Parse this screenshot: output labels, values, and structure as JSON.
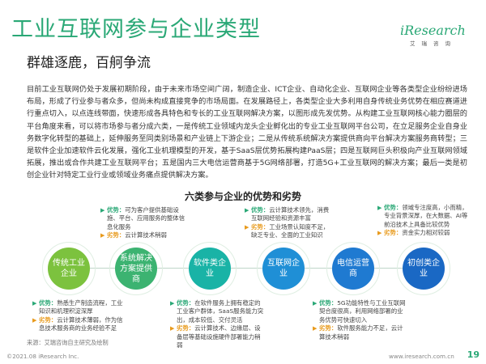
{
  "header": {
    "title": "工业互联网参与企业类型",
    "subtitle": "群雄逐鹿，百舸争流",
    "logo_main": "iResearch",
    "logo_sub": "艾瑞咨询"
  },
  "intro": "目前工业互联网仍处于发展初期阶段，由于未来市场空间广阔，制造企业、ICT企业、自动化企业、互联网企业等各类型企业纷纷进场布局，形成了行业参与者众多，但尚未构成直接竞争的市场局面。在发展路径上，各类型企业大多利用自身传统业务优势在相应赛道进行重点切入，以点连线带面，快速形成各具特色和专长的工业互联网解决方案，以图形成先发优势。从构建工业互联网核心能力圈层的平台角度来看，可以将市场参与者分成六类，一是传统工业领域内龙头企业孵化出的专业工业互联网平台公司，在立足服务企业自身业务数字化转型的基础上，延伸服务至同类别场景和产业链上下游企业；二是从传统系统解决方案提供商向平台解决方案服务商转型；三是软件企业加速软件云化发展，强化工业机理模型的开发，基于SaaS层优势拓展构建PaaS层；四是互联网巨头积极向产业互联网领域拓展，推出或合作共建工业互联网平台；五是国内三大电信运营商基于5G网络部署，打造5G+工业互联网的解决方案；最后一类是初创企业针对特定工业行业或领域业务痛点提供解决方案。",
  "section_title": "六类参与企业的优势和劣势",
  "labels": {
    "pro": "优势：",
    "con": "劣势："
  },
  "nodes": [
    {
      "label": "传统工业企业"
    },
    {
      "label": "系统解决方案提供商"
    },
    {
      "label": "软件类企业"
    },
    {
      "label": "互联网企业"
    },
    {
      "label": "电信运营商"
    },
    {
      "label": "初创类企业"
    }
  ],
  "cards": [
    {
      "pro": "熟悉生产制造流程，工业知识和机理积淀深厚",
      "con": "云计算技术薄弱，作为信息技术服务商的业务经验不足"
    },
    {
      "pro": "可为客户提供基础设施、平台、应用服务的整体信息化服务",
      "con": "云计算技术稍弱"
    },
    {
      "pro": "在软件服务上拥有稳定的工业客户群体，SaaS服务能力突出，成本较低、交付灵活",
      "con": "云计算技术、边缘层、设备层等基础设施硬件部署能力稍弱"
    },
    {
      "pro": "云计算技术领先，消费互联网经验和资源丰富",
      "con": "工业场景认知度不足，缺乏专业、全面的工业知识"
    },
    {
      "pro": "5G功能特性与工业互联网契合度很高，利用网络部署的业务优势可快速切入",
      "con": "软件服务能力不足，云计算技术稍弱"
    },
    {
      "pro": "领域专注度高，小而精，专业背景深厚，在大数据、AI等前沿技术上具备比较优势",
      "con": "资金实力相对较弱"
    }
  ],
  "source": "来源：艾瑞咨询自主研究及绘制",
  "footer": {
    "copyright": "©2021.08 iResearch Inc.",
    "website": "www.iresearch.com.cn",
    "page": "19"
  }
}
